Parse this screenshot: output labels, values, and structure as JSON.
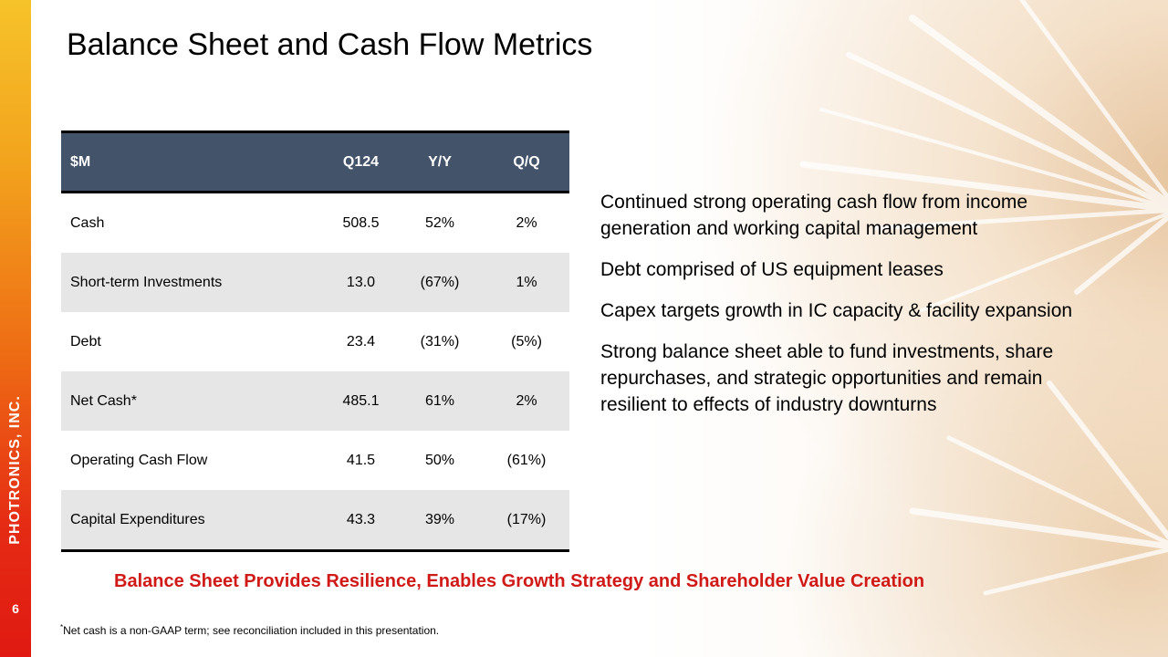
{
  "sidebar": {
    "company": "PHOTRONICS, INC.",
    "page_number": "6"
  },
  "title": "Balance Sheet and Cash Flow Metrics",
  "table": {
    "headers": [
      "$M",
      "Q124",
      "Y/Y",
      "Q/Q"
    ],
    "rows": [
      [
        "Cash",
        "508.5",
        "52%",
        "2%"
      ],
      [
        "Short-term Investments",
        "13.0",
        "(67%)",
        "1%"
      ],
      [
        "Debt",
        "23.4",
        "(31%)",
        "(5%)"
      ],
      [
        "Net Cash*",
        "485.1",
        "61%",
        "2%"
      ],
      [
        "Operating Cash Flow",
        "41.5",
        "50%",
        "(61%)"
      ],
      [
        "Capital Expenditures",
        "43.3",
        "39%",
        "(17%)"
      ]
    ]
  },
  "bullets": [
    "Continued strong operating cash flow from income generation and working capital management",
    "Debt comprised of US equipment leases",
    "Capex targets growth in IC capacity & facility expansion",
    "Strong balance sheet able to fund investments, share repurchases, and strategic opportunities and remain resilient to effects of industry downturns"
  ],
  "tagline": "Balance Sheet Provides Resilience, Enables Growth Strategy and Shareholder Value Creation",
  "footnote": {
    "marker": "*",
    "text": "Net cash is a non-GAAP  term; see reconciliation included in this presentation."
  },
  "colors": {
    "header_bg": "#435369",
    "alt_row_bg": "#e7e6e6",
    "tagline": "#d01a17",
    "sidebar_top": "#f6c32a",
    "sidebar_bottom": "#e01a12"
  }
}
